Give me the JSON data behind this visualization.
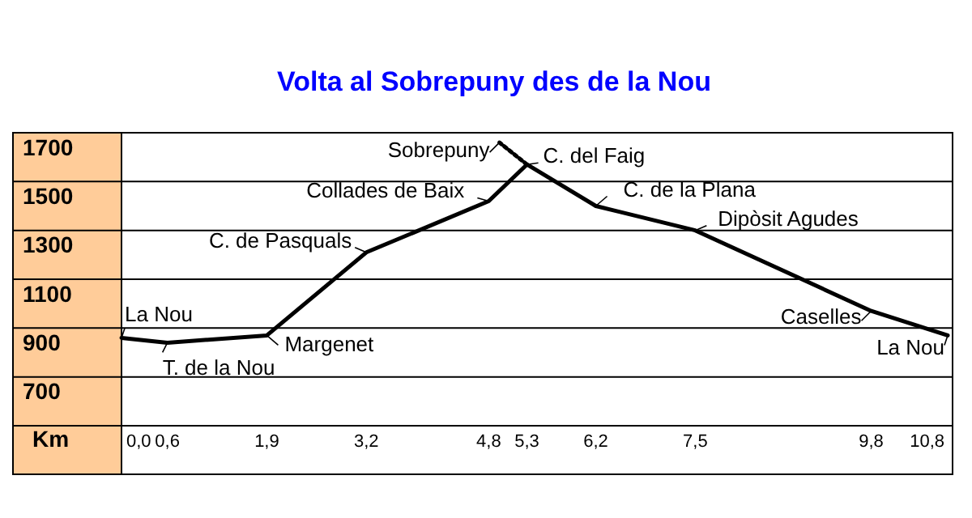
{
  "chart_data": {
    "type": "line",
    "title": "Volta al Sobrepuny des de la Nou",
    "xlabel": "Km",
    "series": [
      {
        "color": "#000000",
        "x": [
          0,
          0.6,
          1.9,
          3.2,
          4.8,
          5.3,
          6.2,
          7.5,
          9.8,
          10.8
        ],
        "values": [
          860,
          840,
          870,
          1210,
          1420,
          1570,
          1400,
          1300,
          970,
          870
        ],
        "line_style": "solid"
      },
      {
        "color": "#000000",
        "x": [
          5.3,
          4.94
        ],
        "values": [
          1570,
          1660
        ],
        "line_style": "dotted"
      }
    ],
    "xlim": [
      0,
      10.8
    ],
    "ylim": [
      500,
      1700
    ],
    "xticks": [
      {
        "value": 0,
        "label": "0,0"
      },
      {
        "value": 0.6,
        "label": "0,6"
      },
      {
        "value": 1.9,
        "label": "1,9"
      },
      {
        "value": 3.2,
        "label": "3,2"
      },
      {
        "value": 4.8,
        "label": "4,8"
      },
      {
        "value": 5.3,
        "label": "5,3"
      },
      {
        "value": 6.2,
        "label": "6,2"
      },
      {
        "value": 7.5,
        "label": "7,5"
      },
      {
        "value": 9.8,
        "label": "9,8"
      },
      {
        "value": 10.8,
        "label": "10,8"
      }
    ],
    "yticks": [
      700,
      900,
      1100,
      1300,
      1500,
      1700
    ],
    "grid": "y",
    "marker": "none",
    "annotations": [
      {
        "text": "La Nou",
        "x": 0,
        "y": 860
      },
      {
        "text": "T. de la Nou",
        "x": 0.6,
        "y": 840
      },
      {
        "text": "Margenet",
        "x": 1.9,
        "y": 870
      },
      {
        "text": "C. de Pasquals",
        "x": 3.2,
        "y": 1210
      },
      {
        "text": "Collades de Baix",
        "x": 4.8,
        "y": 1420
      },
      {
        "text": "Sobrepuny",
        "x": 4.94,
        "y": 1660
      },
      {
        "text": "C. del Faig",
        "x": 5.3,
        "y": 1570
      },
      {
        "text": "C. de la Plana",
        "x": 6.2,
        "y": 1400
      },
      {
        "text": "Dipòsit Agudes",
        "x": 7.5,
        "y": 1300
      },
      {
        "text": "Caselles",
        "x": 9.8,
        "y": 970
      },
      {
        "text": "La Nou",
        "x": 10.8,
        "y": 870
      }
    ]
  }
}
